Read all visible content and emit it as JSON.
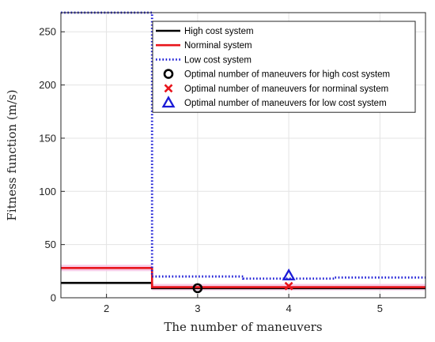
{
  "chart_data": {
    "type": "line",
    "step": true,
    "xlabel": "The number of maneuvers",
    "ylabel": "Fitness function (m/s)",
    "xlim": [
      1.5,
      5.5
    ],
    "ylim": [
      0,
      268
    ],
    "xticks": [
      2,
      3,
      4,
      5
    ],
    "yticks": [
      0,
      50,
      100,
      150,
      200,
      250
    ],
    "grid": true,
    "legend_position": "top-right",
    "series": [
      {
        "name": "High cost system",
        "color": "#000000",
        "style": "solid",
        "x": [
          2,
          3,
          4,
          5
        ],
        "values": [
          14,
          9,
          9,
          9
        ]
      },
      {
        "name": "Norminal system",
        "color": "#e8141b",
        "style": "solid",
        "band": 3,
        "x": [
          2,
          3,
          4,
          5
        ],
        "values": [
          28,
          10,
          10,
          10
        ]
      },
      {
        "name": "Low cost system",
        "color": "#1a1ad6",
        "style": "dotted",
        "x": [
          2,
          3,
          4,
          5
        ],
        "values": [
          278,
          20,
          18,
          19
        ]
      }
    ],
    "markers": [
      {
        "name": "Optimal number of maneuvers for high cost system",
        "shape": "circle",
        "color": "#000000",
        "x": 3,
        "y": 9
      },
      {
        "name": "Optimal number of maneuvers for norminal system",
        "shape": "cross",
        "color": "#e8141b",
        "x": 4,
        "y": 11
      },
      {
        "name": "Optimal number of maneuvers for low cost system",
        "shape": "triangle",
        "color": "#1a1ad6",
        "x": 4,
        "y": 21
      }
    ]
  }
}
